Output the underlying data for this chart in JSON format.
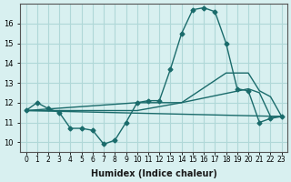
{
  "xlabel": "Humidex (Indice chaleur)",
  "ylabel": "",
  "bg_color": "#d8f0f0",
  "grid_color": "#b0d8d8",
  "line_color": "#1a6b6b",
  "xlim": [
    -0.5,
    23.5
  ],
  "ylim": [
    9.5,
    17.0
  ],
  "yticks": [
    10,
    11,
    12,
    13,
    14,
    15,
    16
  ],
  "xtick_labels": [
    "0",
    "1",
    "2",
    "3",
    "4",
    "5",
    "6",
    "7",
    "8",
    "9",
    "10",
    "11",
    "12",
    "13",
    "14",
    "15",
    "16",
    "17",
    "18",
    "19",
    "20",
    "21",
    "22",
    "23"
  ],
  "curve1_x": [
    0,
    1,
    2,
    3,
    4,
    5,
    6,
    7,
    8,
    9,
    10,
    11,
    12,
    13,
    14,
    15,
    16,
    17,
    18,
    19,
    20,
    21,
    22,
    23
  ],
  "curve1_y": [
    11.6,
    12.0,
    11.7,
    11.5,
    10.7,
    10.7,
    10.6,
    9.9,
    10.1,
    11.0,
    12.0,
    12.1,
    12.1,
    13.7,
    15.5,
    16.7,
    16.8,
    16.6,
    15.0,
    12.7,
    12.6,
    11.0,
    11.2,
    11.3
  ],
  "curve2_x": [
    0,
    23
  ],
  "curve2_y": [
    11.6,
    11.3
  ],
  "curve3_x": [
    0,
    10,
    14,
    18,
    20,
    21,
    22,
    23
  ],
  "curve3_y": [
    11.6,
    12.0,
    12.0,
    13.5,
    13.5,
    12.6,
    12.3,
    11.3
  ],
  "curve4_x": [
    0,
    10,
    14,
    20,
    21,
    22,
    23
  ],
  "curve4_y": [
    11.6,
    11.6,
    12.0,
    12.7,
    12.5,
    11.3,
    11.3
  ]
}
